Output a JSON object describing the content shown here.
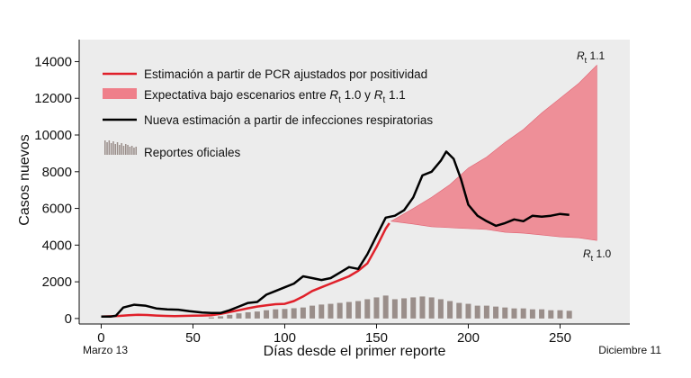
{
  "chart_data": {
    "type": "line",
    "xlabel": "Días desde el primer reporte",
    "ylabel": "Casos nuevos",
    "xlim": [
      -12,
      288
    ],
    "ylim": [
      -300,
      15200
    ],
    "x_ticks": [
      0,
      50,
      100,
      150,
      200,
      250
    ],
    "y_ticks": [
      0,
      2000,
      4000,
      6000,
      8000,
      10000,
      12000,
      14000
    ],
    "grid": false,
    "background_color": "#ececec",
    "legend_position": "top-left",
    "start_label": "Marzo 13",
    "end_label": "Diciembre 11",
    "legend": {
      "red_line": "Estimación a partir de PCR ajustados por positividad",
      "band": {
        "prefix": "Expectativa bajo escenarios entre ",
        "r": "R",
        "sub": "t",
        "v1": " 1.0 y ",
        "v2": " 1.1"
      },
      "black_line": "Nueva estimación a partir de infecciones respiratorias",
      "bars": "Reportes oficiales"
    },
    "band_labels": {
      "upper": {
        "r": "R",
        "sub": "t",
        "value": " 1.1"
      },
      "lower": {
        "r": "R",
        "sub": "t",
        "value": " 1.0"
      }
    },
    "series": [
      {
        "name": "Estimación a partir de PCR ajustados por positividad",
        "color": "#e0202a",
        "x": [
          0,
          5,
          10,
          15,
          20,
          25,
          30,
          35,
          40,
          45,
          50,
          55,
          60,
          65,
          70,
          75,
          80,
          85,
          90,
          95,
          100,
          105,
          110,
          115,
          120,
          125,
          130,
          135,
          140,
          145,
          150,
          155,
          157
        ],
        "y": [
          100,
          120,
          140,
          180,
          200,
          190,
          160,
          140,
          130,
          140,
          150,
          160,
          180,
          250,
          350,
          450,
          560,
          650,
          720,
          780,
          800,
          950,
          1200,
          1500,
          1700,
          1900,
          2100,
          2300,
          2600,
          3000,
          3900,
          4900,
          5200
        ]
      },
      {
        "name": "Nueva estimación a partir de infecciones respiratorias",
        "color": "#000000",
        "x": [
          0,
          5,
          8,
          12,
          18,
          24,
          30,
          36,
          42,
          48,
          55,
          60,
          65,
          70,
          75,
          80,
          85,
          90,
          95,
          100,
          105,
          110,
          115,
          120,
          125,
          130,
          135,
          140,
          145,
          150,
          155,
          160,
          165,
          170,
          175,
          180,
          185,
          188,
          192,
          196,
          200,
          205,
          210,
          215,
          220,
          225,
          230,
          235,
          240,
          245,
          250,
          255
        ],
        "y": [
          100,
          100,
          150,
          600,
          750,
          700,
          550,
          500,
          480,
          400,
          330,
          300,
          300,
          450,
          650,
          850,
          900,
          1300,
          1500,
          1700,
          1900,
          2300,
          2200,
          2100,
          2200,
          2500,
          2800,
          2700,
          3500,
          4500,
          5500,
          5600,
          5900,
          6600,
          7800,
          8000,
          8600,
          9100,
          8700,
          7600,
          6200,
          5600,
          5300,
          5050,
          5200,
          5400,
          5300,
          5600,
          5550,
          5600,
          5700,
          5650
        ]
      }
    ],
    "band": {
      "name": "Expectativa bajo escenarios entre Rt 1.0 y Rt 1.1",
      "color": "#ef7f8a",
      "x": [
        158,
        170,
        180,
        190,
        200,
        210,
        220,
        230,
        240,
        250,
        260,
        270
      ],
      "lower": [
        5300,
        5150,
        5000,
        4950,
        4900,
        4850,
        4700,
        4650,
        4550,
        4450,
        4400,
        4250
      ],
      "upper": [
        5300,
        6000,
        6600,
        7300,
        8200,
        8800,
        9600,
        10300,
        11200,
        12000,
        12800,
        13800
      ]
    },
    "bars": {
      "name": "Reportes oficiales",
      "color": "#9a8e8a",
      "x": [
        60,
        65,
        70,
        75,
        80,
        85,
        90,
        95,
        100,
        105,
        110,
        115,
        120,
        125,
        130,
        135,
        140,
        145,
        150,
        155,
        160,
        165,
        170,
        175,
        180,
        185,
        190,
        195,
        200,
        205,
        210,
        215,
        220,
        225,
        230,
        235,
        240,
        245,
        250,
        255
      ],
      "values": [
        60,
        120,
        200,
        280,
        340,
        380,
        450,
        500,
        520,
        560,
        600,
        700,
        760,
        800,
        850,
        900,
        950,
        1050,
        1150,
        1250,
        1050,
        1100,
        1150,
        1200,
        1150,
        1050,
        950,
        850,
        800,
        700,
        700,
        650,
        600,
        550,
        550,
        500,
        500,
        450,
        450,
        420
      ]
    }
  }
}
